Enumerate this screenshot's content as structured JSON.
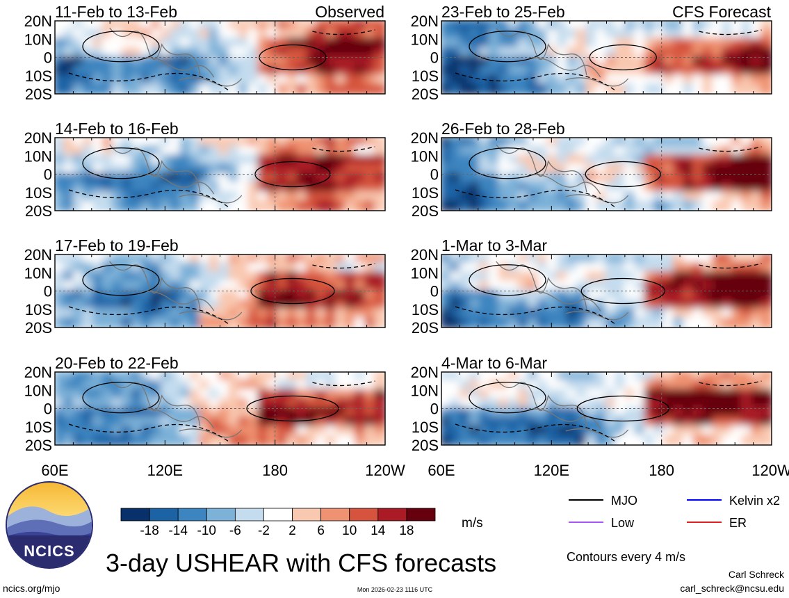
{
  "chart_data": {
    "type": "heatmap",
    "title": "3-day USHEAR with CFS forecasts",
    "variable": "USHEAR",
    "units": "m/s",
    "lon_ticks": [
      "60E",
      "120E",
      "180",
      "120W"
    ],
    "lon_range_deg": [
      60,
      240
    ],
    "lat_ticks": [
      "20N",
      "10N",
      "0",
      "10S",
      "20S"
    ],
    "lat_range_deg": [
      -20,
      20
    ],
    "contour_interval_text": "Contours every 4 m/s",
    "colorbar": {
      "labels": [
        "-18",
        "-14",
        "-10",
        "-6",
        "-2",
        "2",
        "6",
        "10",
        "14",
        "18"
      ],
      "colors": [
        "#08306b",
        "#1c63a6",
        "#3d85c0",
        "#7cb1d8",
        "#c4dcee",
        "#ffffff",
        "#f9c8b0",
        "#ef9271",
        "#d6543e",
        "#aa1b25",
        "#66000e"
      ]
    },
    "legend": [
      {
        "label": "MJO",
        "color": "#000000"
      },
      {
        "label": "Kelvin x2",
        "color": "#0000ff"
      },
      {
        "label": "Low",
        "color": "#a855f7"
      },
      {
        "label": "ER",
        "color": "#e02020"
      }
    ],
    "panels": [
      {
        "label": "11-Feb to 13-Feb",
        "tag": "Observed",
        "column": "left",
        "row": 0
      },
      {
        "label": "14-Feb to 16-Feb",
        "tag": "",
        "column": "left",
        "row": 1
      },
      {
        "label": "17-Feb to 19-Feb",
        "tag": "",
        "column": "left",
        "row": 2
      },
      {
        "label": "20-Feb to 22-Feb",
        "tag": "",
        "column": "left",
        "row": 3
      },
      {
        "label": "23-Feb to 25-Feb",
        "tag": "CFS Forecast",
        "column": "right",
        "row": 0
      },
      {
        "label": "26-Feb to 28-Feb",
        "tag": "",
        "column": "right",
        "row": 1
      },
      {
        "label": "1-Mar to 3-Mar",
        "tag": "",
        "column": "right",
        "row": 2
      },
      {
        "label": "4-Mar to 6-Mar",
        "tag": "",
        "column": "right",
        "row": 3
      }
    ]
  },
  "footer": {
    "logo_text": "NCICS",
    "site": "ncics.org/mjo",
    "timestamp": "Mon 2026-02-23 1116 UTC",
    "author": "Carl Schreck",
    "email": "carl_schreck@ncsu.edu"
  }
}
